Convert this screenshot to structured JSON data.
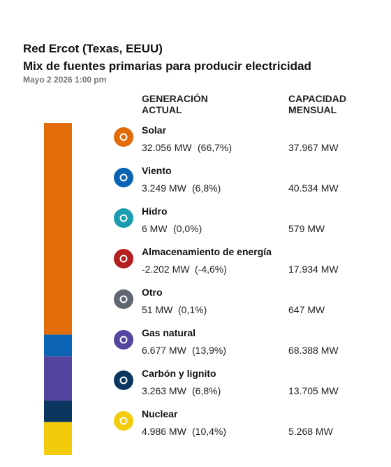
{
  "chart_data": {
    "type": "stacked-bar",
    "title": "Red Ercot (Texas, EEUU)",
    "subtitle": "Mix de fuentes primarias para producir electricidad",
    "date": "Mayo 2 2026 1:00 pm",
    "categories": [
      "Solar",
      "Viento",
      "Hidro",
      "Almacenamiento de energía",
      "Otro",
      "Gas natural",
      "Carbón y lignito",
      "Nuclear"
    ],
    "colors": [
      "#e36c0a",
      "#0b63b5",
      "#1a9db0",
      "#b41f1f",
      "#5f6770",
      "#5446a0",
      "#0b3660",
      "#f2cc0c"
    ],
    "generation": {
      "name": "GENERACIÓN ACTUAL",
      "values": [
        32056,
        3249,
        6,
        -2202,
        51,
        6677,
        3263,
        4986
      ],
      "value_labels": [
        "32.056 MW",
        "3.249 MW",
        "6 MW",
        "-2.202 MW",
        "51 MW",
        "6.677 MW",
        "3.263 MW",
        "4.986 MW"
      ]
    },
    "share": {
      "values": [
        66.7,
        6.8,
        0.0,
        -4.6,
        0.1,
        13.9,
        6.8,
        10.4
      ],
      "value_labels": [
        "(66,7%)",
        "(6,8%)",
        "(0,0%)",
        "(-4,6%)",
        "(0,1%)",
        "(13,9%)",
        "(6,8%)",
        "(10,4%)"
      ]
    },
    "capacity": {
      "name": "CAPACIDAD MENSUAL",
      "values": [
        37967,
        40534,
        579,
        17934,
        647,
        68388,
        13705,
        5268
      ],
      "value_labels": [
        "37.967 MW",
        "40.534 MW",
        "579 MW",
        "17.934 MW",
        "647 MW",
        "68.388 MW",
        "13.705 MW",
        "5.268 MW"
      ]
    }
  }
}
